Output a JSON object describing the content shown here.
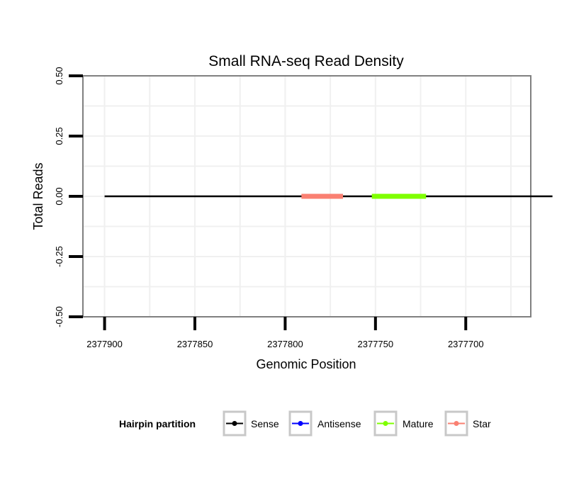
{
  "chart_data": {
    "type": "line",
    "title": "Small RNA-seq Read Density",
    "xlabel": "Genomic Position",
    "ylabel": "Total Reads",
    "x_reversed": true,
    "xlim": [
      2377912,
      2377664
    ],
    "ylim": [
      -0.5,
      0.5
    ],
    "x_ticks": [
      2377900,
      2377850,
      2377800,
      2377750,
      2377700
    ],
    "x_tick_labels": [
      "2377900",
      "2377850",
      "2377800",
      "2377750",
      "2377700"
    ],
    "y_ticks": [
      0.5,
      0.25,
      0.0,
      -0.25,
      -0.5
    ],
    "y_tick_labels": [
      "0.50",
      "0.25",
      "0.00",
      "-0.25",
      "-0.50"
    ],
    "grid": true,
    "legend_position": "bottom",
    "legend_title": "Hairpin partition",
    "series": [
      {
        "name": "Sense",
        "color": "#000000",
        "x": [
          2377900,
          2377652
        ],
        "y": [
          0,
          0
        ]
      },
      {
        "name": "Antisense",
        "color": "#0000ff",
        "x": [],
        "y": []
      },
      {
        "name": "Mature",
        "color": "#7fff00",
        "x": [
          2377752,
          2377722
        ],
        "y": [
          0,
          0
        ]
      },
      {
        "name": "Star",
        "color": "#fa8072",
        "x": [
          2377791,
          2377768
        ],
        "y": [
          0,
          0
        ]
      }
    ]
  }
}
